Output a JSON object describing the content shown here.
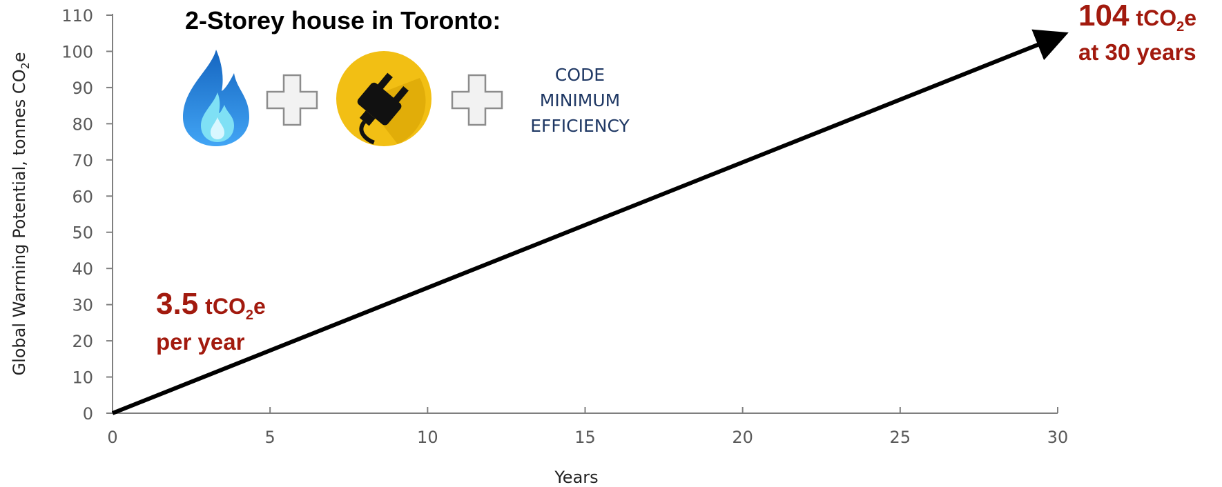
{
  "colors": {
    "annotation": "#a21a0e",
    "line": "#000000",
    "axis": "#7f7f7f",
    "code_text": "#1f3864",
    "plug_circle": "#f2bf14",
    "flame": "#1e88e5"
  },
  "icons": [
    "flame-icon",
    "plus-icon",
    "electric-plug-icon",
    "plus-icon"
  ],
  "title": "2-Storey house in Toronto:",
  "code_text": [
    "CODE",
    "MINIMUM",
    "EFFICIENCY"
  ],
  "annotation_rate": {
    "value": "3.5",
    "unit_prefix": "tCO",
    "unit_sub": "2",
    "unit_suffix": "e",
    "line2": "per year"
  },
  "annotation_total": {
    "value": "104",
    "unit_prefix": "tCO",
    "unit_sub": "2",
    "unit_suffix": "e",
    "line2": "at 30 years"
  },
  "chart_data": {
    "type": "line",
    "title": "2-Storey house in Toronto:",
    "xlabel": "Years",
    "ylabel_prefix": "Global Warming Potential, tonnes CO",
    "ylabel_sub": "2",
    "ylabel_suffix": "e",
    "xlim": [
      0,
      30
    ],
    "ylim": [
      0,
      110
    ],
    "x_ticks": [
      0,
      5,
      10,
      15,
      20,
      25,
      30
    ],
    "y_ticks": [
      0,
      10,
      20,
      30,
      40,
      50,
      60,
      70,
      80,
      90,
      100,
      110
    ],
    "grid": false,
    "series": [
      {
        "x": [
          0,
          30
        ],
        "y": [
          0,
          104
        ]
      }
    ]
  }
}
